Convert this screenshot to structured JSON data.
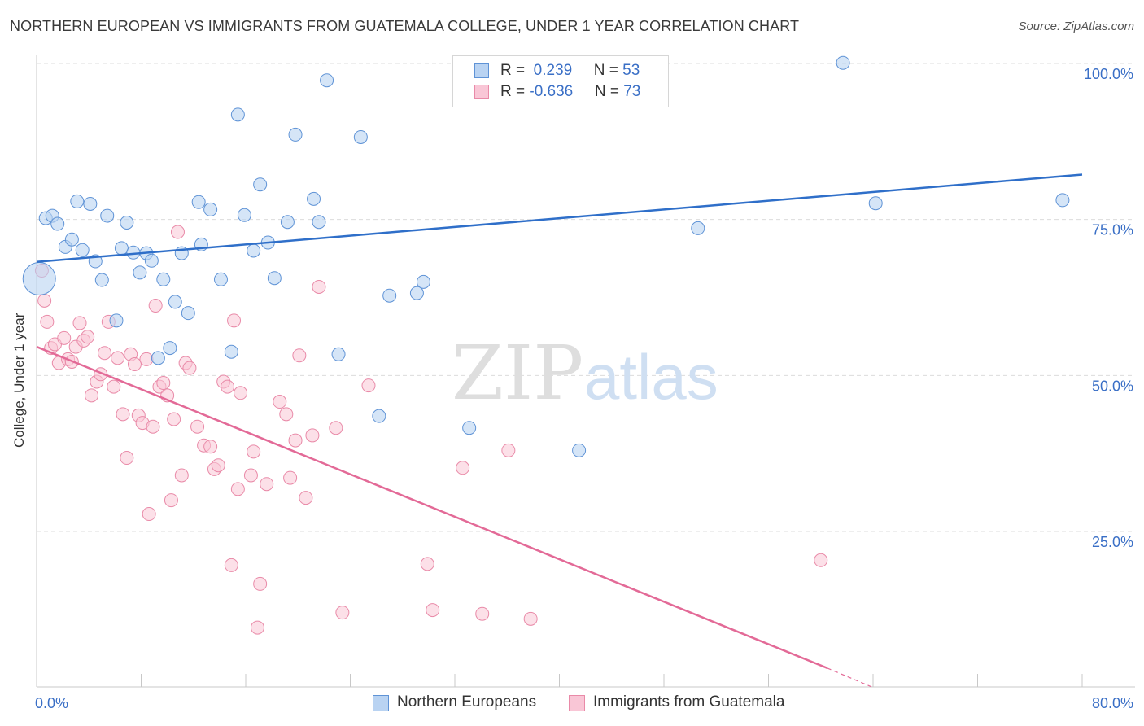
{
  "header": {
    "title": "NORTHERN EUROPEAN VS IMMIGRANTS FROM GUATEMALA COLLEGE, UNDER 1 YEAR CORRELATION CHART",
    "source": "Source: ZipAtlas.com"
  },
  "watermark": {
    "zip": "ZIP",
    "atlas": "atlas"
  },
  "colors": {
    "blue_fill": "#b9d3f2",
    "blue_stroke": "#5f93d6",
    "blue_line": "#2f6fc9",
    "pink_fill": "#f9c6d6",
    "pink_stroke": "#e98aa8",
    "pink_line": "#e36a97",
    "axis_label_blue": "#3a6fc6"
  },
  "legend": {
    "row1": {
      "r_label": "R = ",
      "r_value": " 0.239",
      "n_label": "N = ",
      "n_value": "53"
    },
    "row2": {
      "r_label": "R = ",
      "r_value": "-0.636",
      "n_label": "N = ",
      "n_value": "73"
    }
  },
  "bottom_legend": {
    "series1": "Northern Europeans",
    "series2": "Immigrants from Guatemala"
  },
  "chart_data": {
    "type": "scatter",
    "title": "NORTHERN EUROPEAN VS IMMIGRANTS FROM GUATEMALA COLLEGE, UNDER 1 YEAR CORRELATION CHART",
    "xlabel": "",
    "ylabel": "College, Under 1 year",
    "xlim": [
      0,
      80
    ],
    "ylim": [
      0,
      102
    ],
    "x_tick_labels": [
      "0.0%",
      "80.0%"
    ],
    "y_ticks": [
      25,
      50,
      75,
      100
    ],
    "y_tick_labels": [
      "25.0%",
      "50.0%",
      "75.0%",
      "100.0%"
    ],
    "grid": true,
    "series": [
      {
        "name": "Northern Europeans",
        "R": 0.239,
        "N": 53,
        "trend": {
          "x": [
            0,
            80
          ],
          "y": [
            68.2,
            82.2
          ]
        },
        "points": [
          [
            0.2,
            65.5
          ],
          [
            0.7,
            75.2
          ],
          [
            1.2,
            75.6
          ],
          [
            1.6,
            74.3
          ],
          [
            2.2,
            70.6
          ],
          [
            2.7,
            71.8
          ],
          [
            3.1,
            77.9
          ],
          [
            3.5,
            70.1
          ],
          [
            4.1,
            77.5
          ],
          [
            4.5,
            68.3
          ],
          [
            5.0,
            65.3
          ],
          [
            5.4,
            75.6
          ],
          [
            6.1,
            58.8
          ],
          [
            6.5,
            70.4
          ],
          [
            6.9,
            74.5
          ],
          [
            7.4,
            69.7
          ],
          [
            7.9,
            66.5
          ],
          [
            8.4,
            69.6
          ],
          [
            8.8,
            68.4
          ],
          [
            9.3,
            52.8
          ],
          [
            9.7,
            65.4
          ],
          [
            10.2,
            54.4
          ],
          [
            10.6,
            61.8
          ],
          [
            11.1,
            69.6
          ],
          [
            11.6,
            60.0
          ],
          [
            12.4,
            77.8
          ],
          [
            12.6,
            71.0
          ],
          [
            13.3,
            76.6
          ],
          [
            14.1,
            65.4
          ],
          [
            14.9,
            53.8
          ],
          [
            15.4,
            91.8
          ],
          [
            15.9,
            75.7
          ],
          [
            16.6,
            70.0
          ],
          [
            17.1,
            80.6
          ],
          [
            17.7,
            71.3
          ],
          [
            18.2,
            65.6
          ],
          [
            19.2,
            74.6
          ],
          [
            19.8,
            88.6
          ],
          [
            21.2,
            78.3
          ],
          [
            21.6,
            74.6
          ],
          [
            22.2,
            97.3
          ],
          [
            23.1,
            53.4
          ],
          [
            24.8,
            88.2
          ],
          [
            26.2,
            43.5
          ],
          [
            27.0,
            62.8
          ],
          [
            29.1,
            63.2
          ],
          [
            29.6,
            65.0
          ],
          [
            33.1,
            41.6
          ],
          [
            41.5,
            38.0
          ],
          [
            50.6,
            73.6
          ],
          [
            61.7,
            100.1
          ],
          [
            64.2,
            77.6
          ],
          [
            78.5,
            78.1
          ]
        ]
      },
      {
        "name": "Immigrants from Guatemala",
        "R": -0.636,
        "N": 73,
        "trend": {
          "x": [
            0,
            60.5
          ],
          "y": [
            54.6,
            3.1
          ]
        },
        "trend_dashed": {
          "x": [
            60.5,
            64
          ],
          "y": [
            3.1,
            0
          ]
        },
        "points": [
          [
            0.4,
            66.8
          ],
          [
            0.6,
            62.0
          ],
          [
            0.8,
            58.6
          ],
          [
            1.1,
            54.4
          ],
          [
            1.4,
            55.0
          ],
          [
            1.7,
            52.0
          ],
          [
            2.1,
            56.0
          ],
          [
            2.4,
            52.6
          ],
          [
            2.7,
            52.2
          ],
          [
            3.0,
            54.6
          ],
          [
            3.3,
            58.4
          ],
          [
            3.6,
            55.6
          ],
          [
            3.9,
            56.2
          ],
          [
            4.2,
            46.8
          ],
          [
            4.6,
            49.0
          ],
          [
            4.9,
            50.2
          ],
          [
            5.2,
            53.6
          ],
          [
            5.5,
            58.6
          ],
          [
            5.9,
            48.2
          ],
          [
            6.2,
            52.8
          ],
          [
            6.6,
            43.8
          ],
          [
            6.9,
            36.8
          ],
          [
            7.2,
            53.4
          ],
          [
            7.5,
            51.8
          ],
          [
            7.8,
            43.6
          ],
          [
            8.1,
            42.4
          ],
          [
            8.4,
            52.6
          ],
          [
            8.6,
            27.8
          ],
          [
            8.9,
            41.8
          ],
          [
            9.1,
            61.2
          ],
          [
            9.4,
            48.2
          ],
          [
            9.7,
            48.8
          ],
          [
            10.0,
            46.8
          ],
          [
            10.3,
            30.0
          ],
          [
            10.5,
            43.0
          ],
          [
            10.8,
            73.0
          ],
          [
            11.1,
            34.0
          ],
          [
            11.4,
            52.0
          ],
          [
            11.7,
            51.2
          ],
          [
            12.3,
            41.8
          ],
          [
            12.8,
            38.8
          ],
          [
            13.3,
            38.6
          ],
          [
            13.6,
            35.0
          ],
          [
            13.9,
            35.6
          ],
          [
            14.3,
            49.0
          ],
          [
            14.6,
            48.2
          ],
          [
            14.9,
            19.6
          ],
          [
            15.1,
            58.8
          ],
          [
            15.4,
            31.8
          ],
          [
            15.6,
            47.2
          ],
          [
            16.4,
            34.0
          ],
          [
            16.6,
            37.8
          ],
          [
            16.9,
            9.6
          ],
          [
            17.1,
            16.6
          ],
          [
            17.6,
            32.6
          ],
          [
            18.6,
            45.8
          ],
          [
            19.1,
            43.8
          ],
          [
            19.4,
            33.6
          ],
          [
            19.8,
            39.6
          ],
          [
            20.1,
            53.2
          ],
          [
            20.6,
            30.4
          ],
          [
            21.1,
            40.4
          ],
          [
            21.6,
            64.2
          ],
          [
            22.9,
            41.6
          ],
          [
            23.4,
            12.0
          ],
          [
            25.4,
            48.4
          ],
          [
            29.9,
            19.8
          ],
          [
            30.3,
            12.4
          ],
          [
            32.6,
            35.2
          ],
          [
            34.1,
            11.8
          ],
          [
            36.1,
            38.0
          ],
          [
            37.8,
            11.0
          ],
          [
            60.0,
            20.4
          ]
        ]
      }
    ]
  }
}
